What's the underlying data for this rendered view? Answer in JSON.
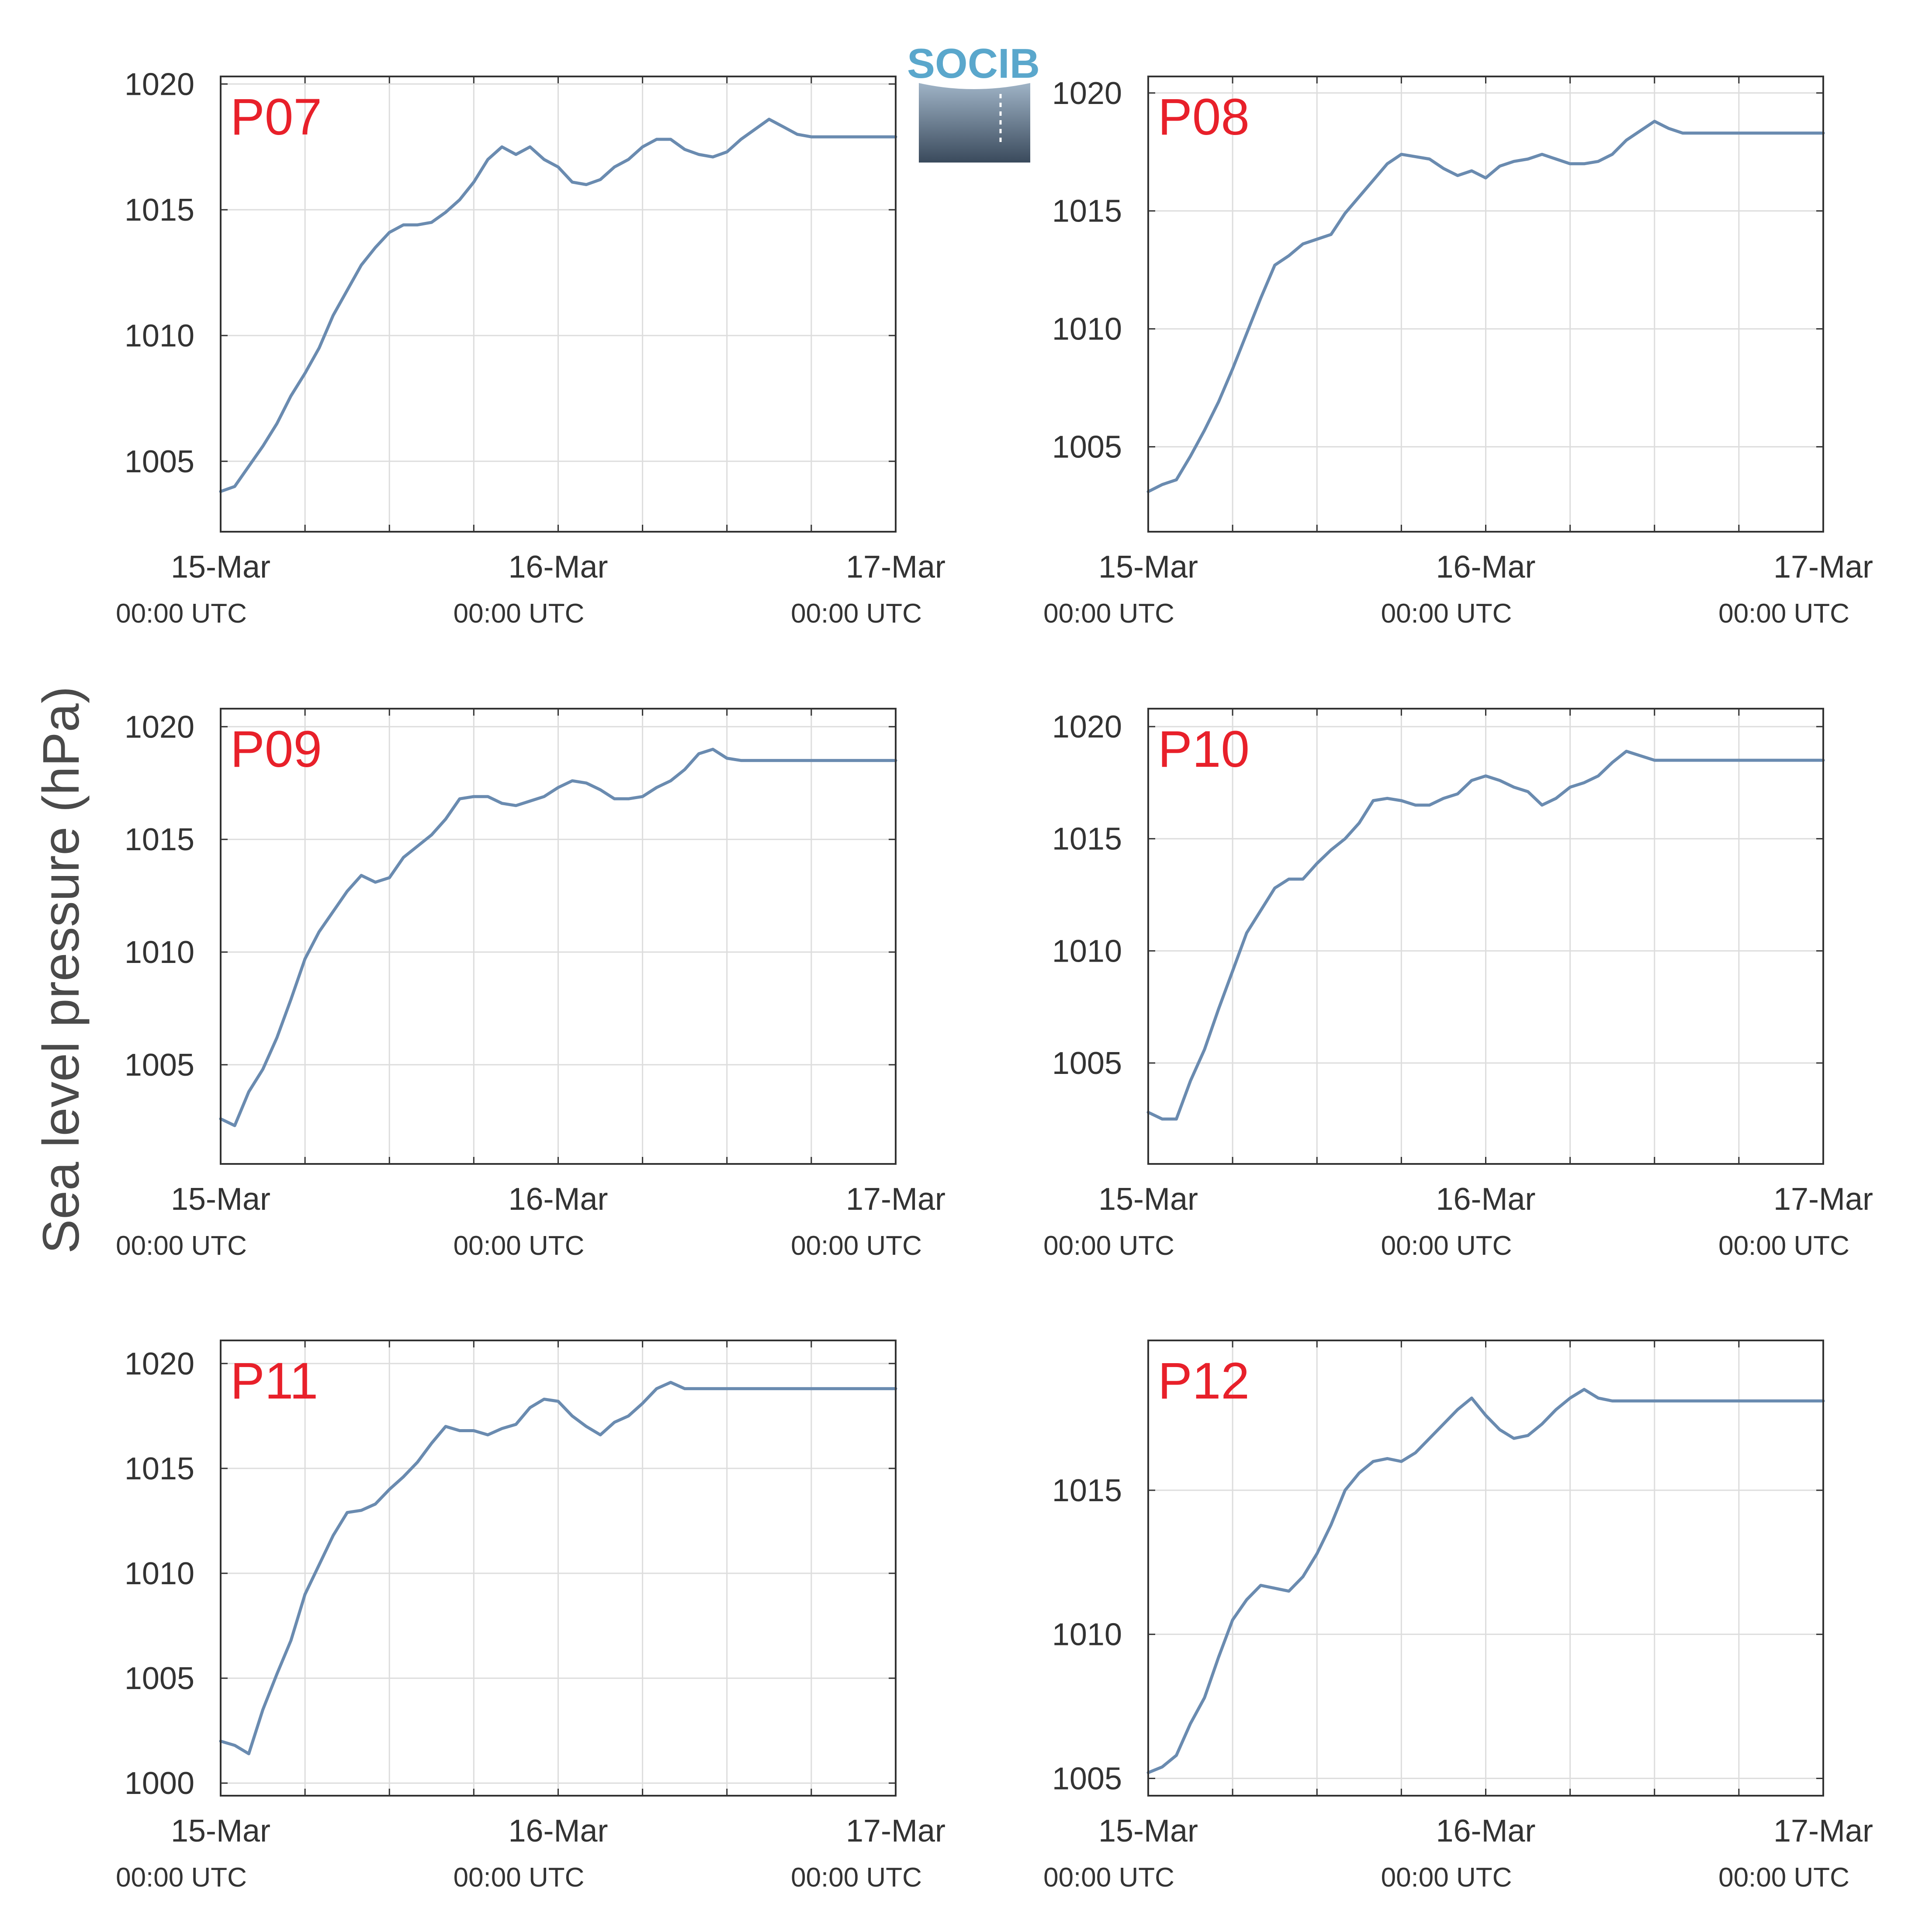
{
  "figure": {
    "ylabel": "Sea level pressure (hPa)",
    "logo_text": "SOCIB"
  },
  "colors": {
    "line": "#6a8bb0",
    "panel_label": "#e8202a",
    "grid": "#dddddd",
    "axis": "#333333",
    "logo_text": "#5aa7cc"
  },
  "chart_data": [
    {
      "type": "line",
      "title": "P07",
      "x_ticks": [
        {
          "date": "15-Mar",
          "time": "00:00 UTC"
        },
        {
          "date": "16-Mar",
          "time": "00:00 UTC"
        },
        {
          "date": "17-Mar",
          "time": "00:00 UTC"
        }
      ],
      "x_hours": [
        0,
        48
      ],
      "ylim": [
        1002.2,
        1020.3
      ],
      "yticks": [
        1005,
        1010,
        1015,
        1020
      ],
      "grid": true,
      "series": [
        {
          "x": [
            0,
            1,
            2,
            3,
            4,
            5,
            6,
            7,
            8,
            9,
            10,
            11,
            12,
            13,
            14,
            15,
            16,
            17,
            18,
            19,
            20,
            21,
            22,
            23,
            24,
            25,
            26,
            27,
            28,
            29,
            30,
            31,
            32,
            33,
            34,
            35,
            36,
            37,
            38,
            39,
            40,
            41,
            42,
            43,
            44,
            45,
            46,
            47,
            48
          ],
          "y": [
            1003.8,
            1004.0,
            1004.8,
            1005.6,
            1006.5,
            1007.6,
            1008.5,
            1009.5,
            1010.8,
            1011.8,
            1012.8,
            1013.5,
            1014.1,
            1014.4,
            1014.4,
            1014.5,
            1014.9,
            1015.4,
            1016.1,
            1017.0,
            1017.5,
            1017.2,
            1017.5,
            1017.0,
            1016.7,
            1016.1,
            1016.0,
            1016.2,
            1016.7,
            1017.0,
            1017.5,
            1017.8,
            1017.8,
            1017.4,
            1017.2,
            1017.1,
            1017.3,
            1017.8,
            1018.2,
            1018.6,
            1018.3,
            1018.0,
            1017.9,
            1017.9,
            1017.9,
            1017.9,
            1017.9,
            1017.9,
            1017.9
          ]
        }
      ]
    },
    {
      "type": "line",
      "title": "P08",
      "x_ticks": [
        {
          "date": "15-Mar",
          "time": "00:00 UTC"
        },
        {
          "date": "16-Mar",
          "time": "00:00 UTC"
        },
        {
          "date": "17-Mar",
          "time": "00:00 UTC"
        }
      ],
      "x_hours": [
        0,
        48
      ],
      "ylim": [
        1001.4,
        1020.7
      ],
      "yticks": [
        1005,
        1010,
        1015,
        1020
      ],
      "grid": true,
      "series": [
        {
          "x": [
            0,
            1,
            2,
            3,
            4,
            5,
            6,
            7,
            8,
            9,
            10,
            11,
            12,
            13,
            14,
            15,
            16,
            17,
            18,
            19,
            20,
            21,
            22,
            23,
            24,
            25,
            26,
            27,
            28,
            29,
            30,
            31,
            32,
            33,
            34,
            35,
            36,
            37,
            38,
            39,
            40,
            41,
            42,
            43,
            44,
            45,
            46,
            47,
            48
          ],
          "y": [
            1003.1,
            1003.4,
            1003.6,
            1004.6,
            1005.7,
            1006.9,
            1008.3,
            1009.8,
            1011.3,
            1012.7,
            1013.1,
            1013.6,
            1013.8,
            1014.0,
            1014.9,
            1015.6,
            1016.3,
            1017.0,
            1017.4,
            1017.3,
            1017.2,
            1016.8,
            1016.5,
            1016.7,
            1016.4,
            1016.9,
            1017.1,
            1017.2,
            1017.4,
            1017.2,
            1017.0,
            1017.0,
            1017.1,
            1017.4,
            1018.0,
            1018.4,
            1018.8,
            1018.5,
            1018.3,
            1018.3,
            1018.3,
            1018.3,
            1018.3,
            1018.3,
            1018.3,
            1018.3,
            1018.3,
            1018.3,
            1018.3
          ]
        }
      ]
    },
    {
      "type": "line",
      "title": "P09",
      "x_ticks": [
        {
          "date": "15-Mar",
          "time": "00:00 UTC"
        },
        {
          "date": "16-Mar",
          "time": "00:00 UTC"
        },
        {
          "date": "17-Mar",
          "time": "00:00 UTC"
        }
      ],
      "x_hours": [
        0,
        48
      ],
      "ylim": [
        1000.6,
        1020.8
      ],
      "yticks": [
        1005,
        1010,
        1015,
        1020
      ],
      "grid": true,
      "series": [
        {
          "x": [
            0,
            1,
            2,
            3,
            4,
            5,
            6,
            7,
            8,
            9,
            10,
            11,
            12,
            13,
            14,
            15,
            16,
            17,
            18,
            19,
            20,
            21,
            22,
            23,
            24,
            25,
            26,
            27,
            28,
            29,
            30,
            31,
            32,
            33,
            34,
            35,
            36,
            37,
            38,
            39,
            40,
            41,
            42,
            43,
            44,
            45,
            46,
            47,
            48
          ],
          "y": [
            1002.6,
            1002.3,
            1003.8,
            1004.8,
            1006.2,
            1007.9,
            1009.7,
            1010.9,
            1011.8,
            1012.7,
            1013.4,
            1013.1,
            1013.3,
            1014.2,
            1014.7,
            1015.2,
            1015.9,
            1016.8,
            1016.9,
            1016.9,
            1016.6,
            1016.5,
            1016.7,
            1016.9,
            1017.3,
            1017.6,
            1017.5,
            1017.2,
            1016.8,
            1016.8,
            1016.9,
            1017.3,
            1017.6,
            1018.1,
            1018.8,
            1019.0,
            1018.6,
            1018.5,
            1018.5,
            1018.5,
            1018.5,
            1018.5,
            1018.5,
            1018.5,
            1018.5,
            1018.5,
            1018.5,
            1018.5,
            1018.5
          ]
        }
      ]
    },
    {
      "type": "line",
      "title": "P10",
      "x_ticks": [
        {
          "date": "15-Mar",
          "time": "00:00 UTC"
        },
        {
          "date": "16-Mar",
          "time": "00:00 UTC"
        },
        {
          "date": "17-Mar",
          "time": "00:00 UTC"
        }
      ],
      "x_hours": [
        0,
        48
      ],
      "ylim": [
        1000.5,
        1020.8
      ],
      "yticks": [
        1005,
        1010,
        1015,
        1020
      ],
      "grid": true,
      "series": [
        {
          "x": [
            0,
            1,
            2,
            3,
            4,
            5,
            6,
            7,
            8,
            9,
            10,
            11,
            12,
            13,
            14,
            15,
            16,
            17,
            18,
            19,
            20,
            21,
            22,
            23,
            24,
            25,
            26,
            27,
            28,
            29,
            30,
            31,
            32,
            33,
            34,
            35,
            36,
            37,
            38,
            39,
            40,
            41,
            42,
            43,
            44,
            45,
            46,
            47,
            48
          ],
          "y": [
            1002.8,
            1002.5,
            1002.5,
            1004.2,
            1005.6,
            1007.4,
            1009.1,
            1010.8,
            1011.8,
            1012.8,
            1013.2,
            1013.2,
            1013.9,
            1014.5,
            1015.0,
            1015.7,
            1016.7,
            1016.8,
            1016.7,
            1016.5,
            1016.5,
            1016.8,
            1017.0,
            1017.6,
            1017.8,
            1017.6,
            1017.3,
            1017.1,
            1016.5,
            1016.8,
            1017.3,
            1017.5,
            1017.8,
            1018.4,
            1018.9,
            1018.7,
            1018.5,
            1018.5,
            1018.5,
            1018.5,
            1018.5,
            1018.5,
            1018.5,
            1018.5,
            1018.5,
            1018.5,
            1018.5,
            1018.5,
            1018.5
          ]
        }
      ]
    },
    {
      "type": "line",
      "title": "P11",
      "x_ticks": [
        {
          "date": "15-Mar",
          "time": "00:00 UTC"
        },
        {
          "date": "16-Mar",
          "time": "00:00 UTC"
        },
        {
          "date": "17-Mar",
          "time": "00:00 UTC"
        }
      ],
      "x_hours": [
        0,
        48
      ],
      "ylim": [
        999.4,
        1021.1
      ],
      "yticks": [
        1000,
        1005,
        1010,
        1015,
        1020
      ],
      "grid": true,
      "series": [
        {
          "x": [
            0,
            1,
            2,
            3,
            4,
            5,
            6,
            7,
            8,
            9,
            10,
            11,
            12,
            13,
            14,
            15,
            16,
            17,
            18,
            19,
            20,
            21,
            22,
            23,
            24,
            25,
            26,
            27,
            28,
            29,
            30,
            31,
            32,
            33,
            34,
            35,
            36,
            37,
            38,
            39,
            40,
            41,
            42,
            43,
            44,
            45,
            46,
            47,
            48
          ],
          "y": [
            1002.0,
            1001.8,
            1001.4,
            1003.5,
            1005.2,
            1006.8,
            1009.0,
            1010.4,
            1011.8,
            1012.9,
            1013.0,
            1013.3,
            1014.0,
            1014.6,
            1015.3,
            1016.2,
            1017.0,
            1016.8,
            1016.8,
            1016.6,
            1016.9,
            1017.1,
            1017.9,
            1018.3,
            1018.2,
            1017.5,
            1017.0,
            1016.6,
            1017.2,
            1017.5,
            1018.1,
            1018.8,
            1019.1,
            1018.8,
            1018.8,
            1018.8,
            1018.8,
            1018.8,
            1018.8,
            1018.8,
            1018.8,
            1018.8,
            1018.8,
            1018.8,
            1018.8,
            1018.8,
            1018.8,
            1018.8,
            1018.8
          ]
        }
      ]
    },
    {
      "type": "line",
      "title": "P12",
      "x_ticks": [
        {
          "date": "15-Mar",
          "time": "00:00 UTC"
        },
        {
          "date": "16-Mar",
          "time": "00:00 UTC"
        },
        {
          "date": "17-Mar",
          "time": "00:00 UTC"
        }
      ],
      "x_hours": [
        0,
        48
      ],
      "ylim": [
        1004.4,
        1020.2
      ],
      "yticks": [
        1005,
        1010,
        1015
      ],
      "grid": true,
      "series": [
        {
          "x": [
            0,
            1,
            2,
            3,
            4,
            5,
            6,
            7,
            8,
            9,
            10,
            11,
            12,
            13,
            14,
            15,
            16,
            17,
            18,
            19,
            20,
            21,
            22,
            23,
            24,
            25,
            26,
            27,
            28,
            29,
            30,
            31,
            32,
            33,
            34,
            35,
            36,
            37,
            38,
            39,
            40,
            41,
            42,
            43,
            44,
            45,
            46,
            47,
            48
          ],
          "y": [
            1005.2,
            1005.4,
            1005.8,
            1006.9,
            1007.8,
            1009.2,
            1010.5,
            1011.2,
            1011.7,
            1011.6,
            1011.5,
            1012.0,
            1012.8,
            1013.8,
            1015.0,
            1015.6,
            1016.0,
            1016.1,
            1016.0,
            1016.3,
            1016.8,
            1017.3,
            1017.8,
            1018.2,
            1017.6,
            1017.1,
            1016.8,
            1016.9,
            1017.3,
            1017.8,
            1018.2,
            1018.5,
            1018.2,
            1018.1,
            1018.1,
            1018.1,
            1018.1,
            1018.1,
            1018.1,
            1018.1,
            1018.1,
            1018.1,
            1018.1,
            1018.1,
            1018.1,
            1018.1,
            1018.1,
            1018.1,
            1018.1
          ]
        }
      ]
    }
  ]
}
